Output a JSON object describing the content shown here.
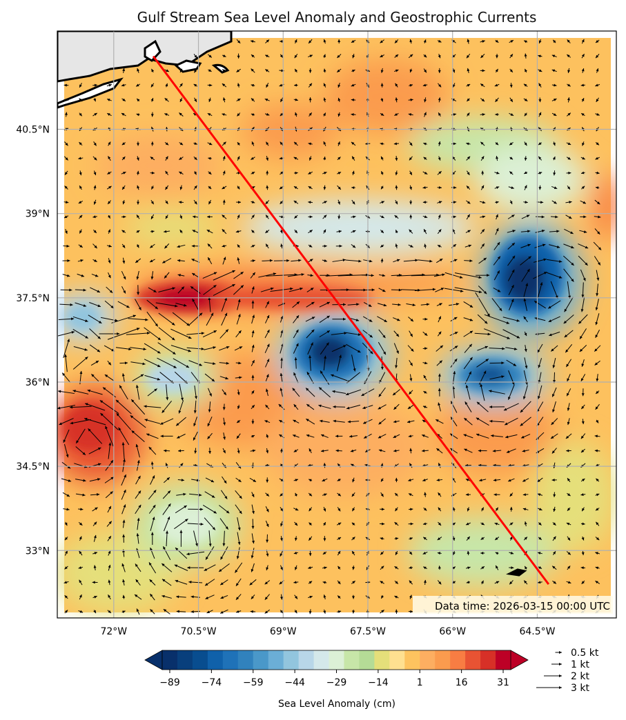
{
  "title": "Gulf Stream Sea Level Anomaly and Geostrophic Currents",
  "data_time": "Data time: 2026-03-15 00:00 UTC",
  "map": {
    "lon_range": [
      -73.0,
      -63.1
    ],
    "lat_range": [
      31.8,
      42.25
    ],
    "grid": true,
    "lon_ticks": [
      {
        "value": -72,
        "label": "72°W"
      },
      {
        "value": -70.5,
        "label": "70.5°W"
      },
      {
        "value": -69,
        "label": "69°W"
      },
      {
        "value": -67.5,
        "label": "67.5°W"
      },
      {
        "value": -66,
        "label": "66°W"
      },
      {
        "value": -64.5,
        "label": "64.5°W"
      }
    ],
    "lat_ticks": [
      {
        "value": 40.5,
        "label": "40.5°N"
      },
      {
        "value": 39,
        "label": "39°N"
      },
      {
        "value": 37.5,
        "label": "37.5°N"
      },
      {
        "value": 36,
        "label": "36°N"
      },
      {
        "value": 34.5,
        "label": "34.5°N"
      },
      {
        "value": 33,
        "label": "33°N"
      }
    ],
    "transect": {
      "start": {
        "lon": -71.3,
        "lat": 41.8
      },
      "end": {
        "lon": -64.3,
        "lat": 32.4
      },
      "color": "#ff0000"
    },
    "gulf_stream_path": [
      [
        -73.0,
        36.0
      ],
      [
        -72.2,
        36.6
      ],
      [
        -71.4,
        37.3
      ],
      [
        -70.6,
        37.7
      ],
      [
        -69.6,
        37.85
      ],
      [
        -68.5,
        37.85
      ],
      [
        -67.2,
        37.85
      ],
      [
        -66.0,
        37.85
      ],
      [
        -65.5,
        37.65
      ],
      [
        -65.3,
        37.1
      ],
      [
        -65.0,
        36.9
      ]
    ],
    "features": [
      {
        "kind": "warm-core",
        "lon": -70.7,
        "lat": 37.2,
        "anomaly_cm": 36
      },
      {
        "kind": "warm-core",
        "lon": -72.4,
        "lat": 35.0,
        "anomaly_cm": 28
      },
      {
        "kind": "cold-core",
        "lon": -64.3,
        "lat": 37.6,
        "anomaly_cm": -85
      },
      {
        "kind": "cold-core",
        "lon": -67.9,
        "lat": 36.3,
        "anomaly_cm": -65
      },
      {
        "kind": "cold-core",
        "lon": -65.2,
        "lat": 35.9,
        "anomaly_cm": -55
      },
      {
        "kind": "cold-core",
        "lon": -71.3,
        "lat": 35.8,
        "anomaly_cm": -30
      },
      {
        "kind": "cold-core",
        "lon": -72.8,
        "lat": 36.6,
        "anomaly_cm": -30
      },
      {
        "kind": "cold-core",
        "lon": -70.6,
        "lat": 33.2,
        "anomaly_cm": -25
      }
    ]
  },
  "colorbar": {
    "label": "Sea Level Anomaly (cm)",
    "ticks": [
      "−89",
      "−74",
      "−59",
      "−44",
      "−29",
      "−14",
      "1",
      "16",
      "31"
    ],
    "colors": [
      "#08306b",
      "#083f7c",
      "#084d8f",
      "#1061aa",
      "#1f72b8",
      "#3182bd",
      "#4a98c9",
      "#6baed6",
      "#92c5de",
      "#b8d6e8",
      "#d4e8ea",
      "#dcf0d6",
      "#c7e6a8",
      "#b5dc96",
      "#e5df7a",
      "#fee090",
      "#fdc35f",
      "#fdae61",
      "#fb9b4e",
      "#f87d43",
      "#e85333",
      "#d73027",
      "#bd0026"
    ]
  },
  "quiver_key": [
    {
      "label": "0.5 kt",
      "speed_kt": 0.5
    },
    {
      "label": "1 kt",
      "speed_kt": 1
    },
    {
      "label": "2 kt",
      "speed_kt": 2
    },
    {
      "label": "3 kt",
      "speed_kt": 3
    }
  ]
}
